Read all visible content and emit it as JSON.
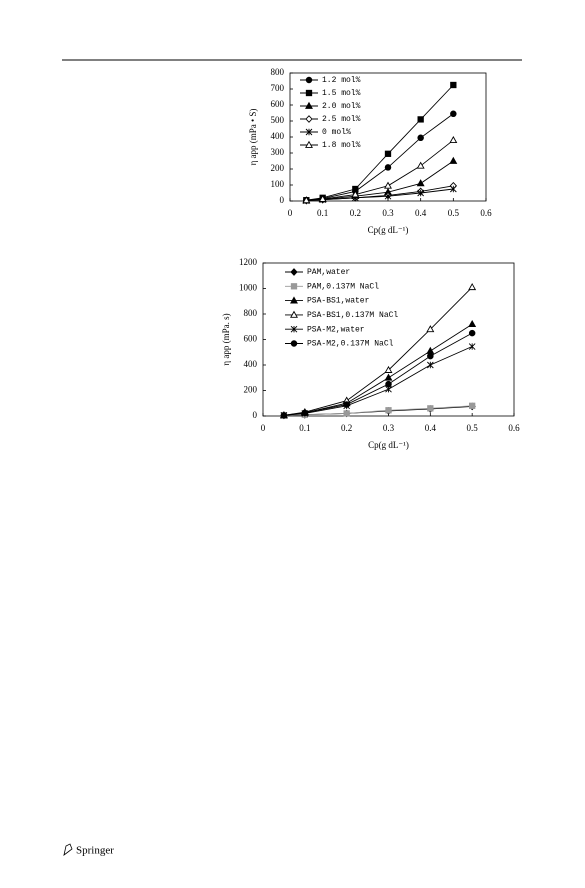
{
  "chart_data": [
    {
      "type": "line",
      "ylabel": "η app (mPa • S)",
      "xlabel": "Cp(g dL⁻¹)",
      "xlim": [
        0,
        0.6
      ],
      "xticks": [
        0,
        0.1,
        0.2,
        0.3,
        0.4,
        0.5,
        0.6
      ],
      "ylim": [
        0,
        800
      ],
      "yticks": [
        0,
        100,
        200,
        300,
        400,
        500,
        600,
        700,
        800
      ],
      "legend": "upper left",
      "x": [
        0.05,
        0.1,
        0.2,
        0.3,
        0.4,
        0.5
      ],
      "series": [
        {
          "name": "1.2 mol%",
          "color": "#000000",
          "marker": "circle",
          "values": [
            5,
            15,
            60,
            210,
            395,
            545
          ]
        },
        {
          "name": "1.5 mol%",
          "color": "#000000",
          "marker": "square",
          "values": [
            5,
            20,
            75,
            295,
            510,
            725
          ]
        },
        {
          "name": "2.0 mol%",
          "color": "#000000",
          "marker": "triangle",
          "values": [
            3,
            10,
            30,
            55,
            110,
            250
          ]
        },
        {
          "name": "2.5 mol%",
          "color": "#000000",
          "marker": "diamond-open",
          "values": [
            2,
            8,
            20,
            35,
            60,
            95
          ]
        },
        {
          "name": "0 mol%",
          "color": "#000000",
          "marker": "star",
          "values": [
            2,
            8,
            20,
            30,
            50,
            75
          ]
        },
        {
          "name": "1.8 mol%",
          "color": "#000000",
          "marker": "triangle-open",
          "values": [
            4,
            12,
            40,
            95,
            220,
            380
          ]
        }
      ]
    },
    {
      "type": "line",
      "ylabel": "η app (mPa. s)",
      "xlabel": "Cp(g dL⁻¹)",
      "xlim": [
        0,
        0.6
      ],
      "xticks": [
        0,
        0.1,
        0.2,
        0.3,
        0.4,
        0.5,
        0.6
      ],
      "ylim": [
        0,
        1200
      ],
      "yticks": [
        0,
        200,
        400,
        600,
        800,
        1000,
        1200
      ],
      "legend": "upper left",
      "x": [
        0.05,
        0.1,
        0.2,
        0.3,
        0.4,
        0.5
      ],
      "series": [
        {
          "name": "PAM,water",
          "color": "#000000",
          "marker": "diamond",
          "values": [
            5,
            10,
            20,
            40,
            55,
            75
          ]
        },
        {
          "name": "PAM,0.137M NaCl",
          "color": "#999999",
          "marker": "square",
          "values": [
            5,
            10,
            20,
            45,
            60,
            80
          ]
        },
        {
          "name": "PSA-BS1,water",
          "color": "#000000",
          "marker": "triangle",
          "values": [
            5,
            25,
            100,
            300,
            510,
            720
          ]
        },
        {
          "name": "PSA-BS1,0.137M NaCl",
          "color": "#000000",
          "marker": "triangle-open",
          "values": [
            5,
            30,
            120,
            360,
            680,
            1010
          ]
        },
        {
          "name": "PSA-M2,water",
          "color": "#000000",
          "marker": "star",
          "values": [
            5,
            20,
            80,
            210,
            400,
            545
          ]
        },
        {
          "name": "PSA-M2,0.137M NaCl",
          "color": "#000000",
          "marker": "circle",
          "values": [
            5,
            25,
            90,
            250,
            470,
            650
          ]
        }
      ]
    }
  ],
  "footer": {
    "publisher": "Springer"
  }
}
